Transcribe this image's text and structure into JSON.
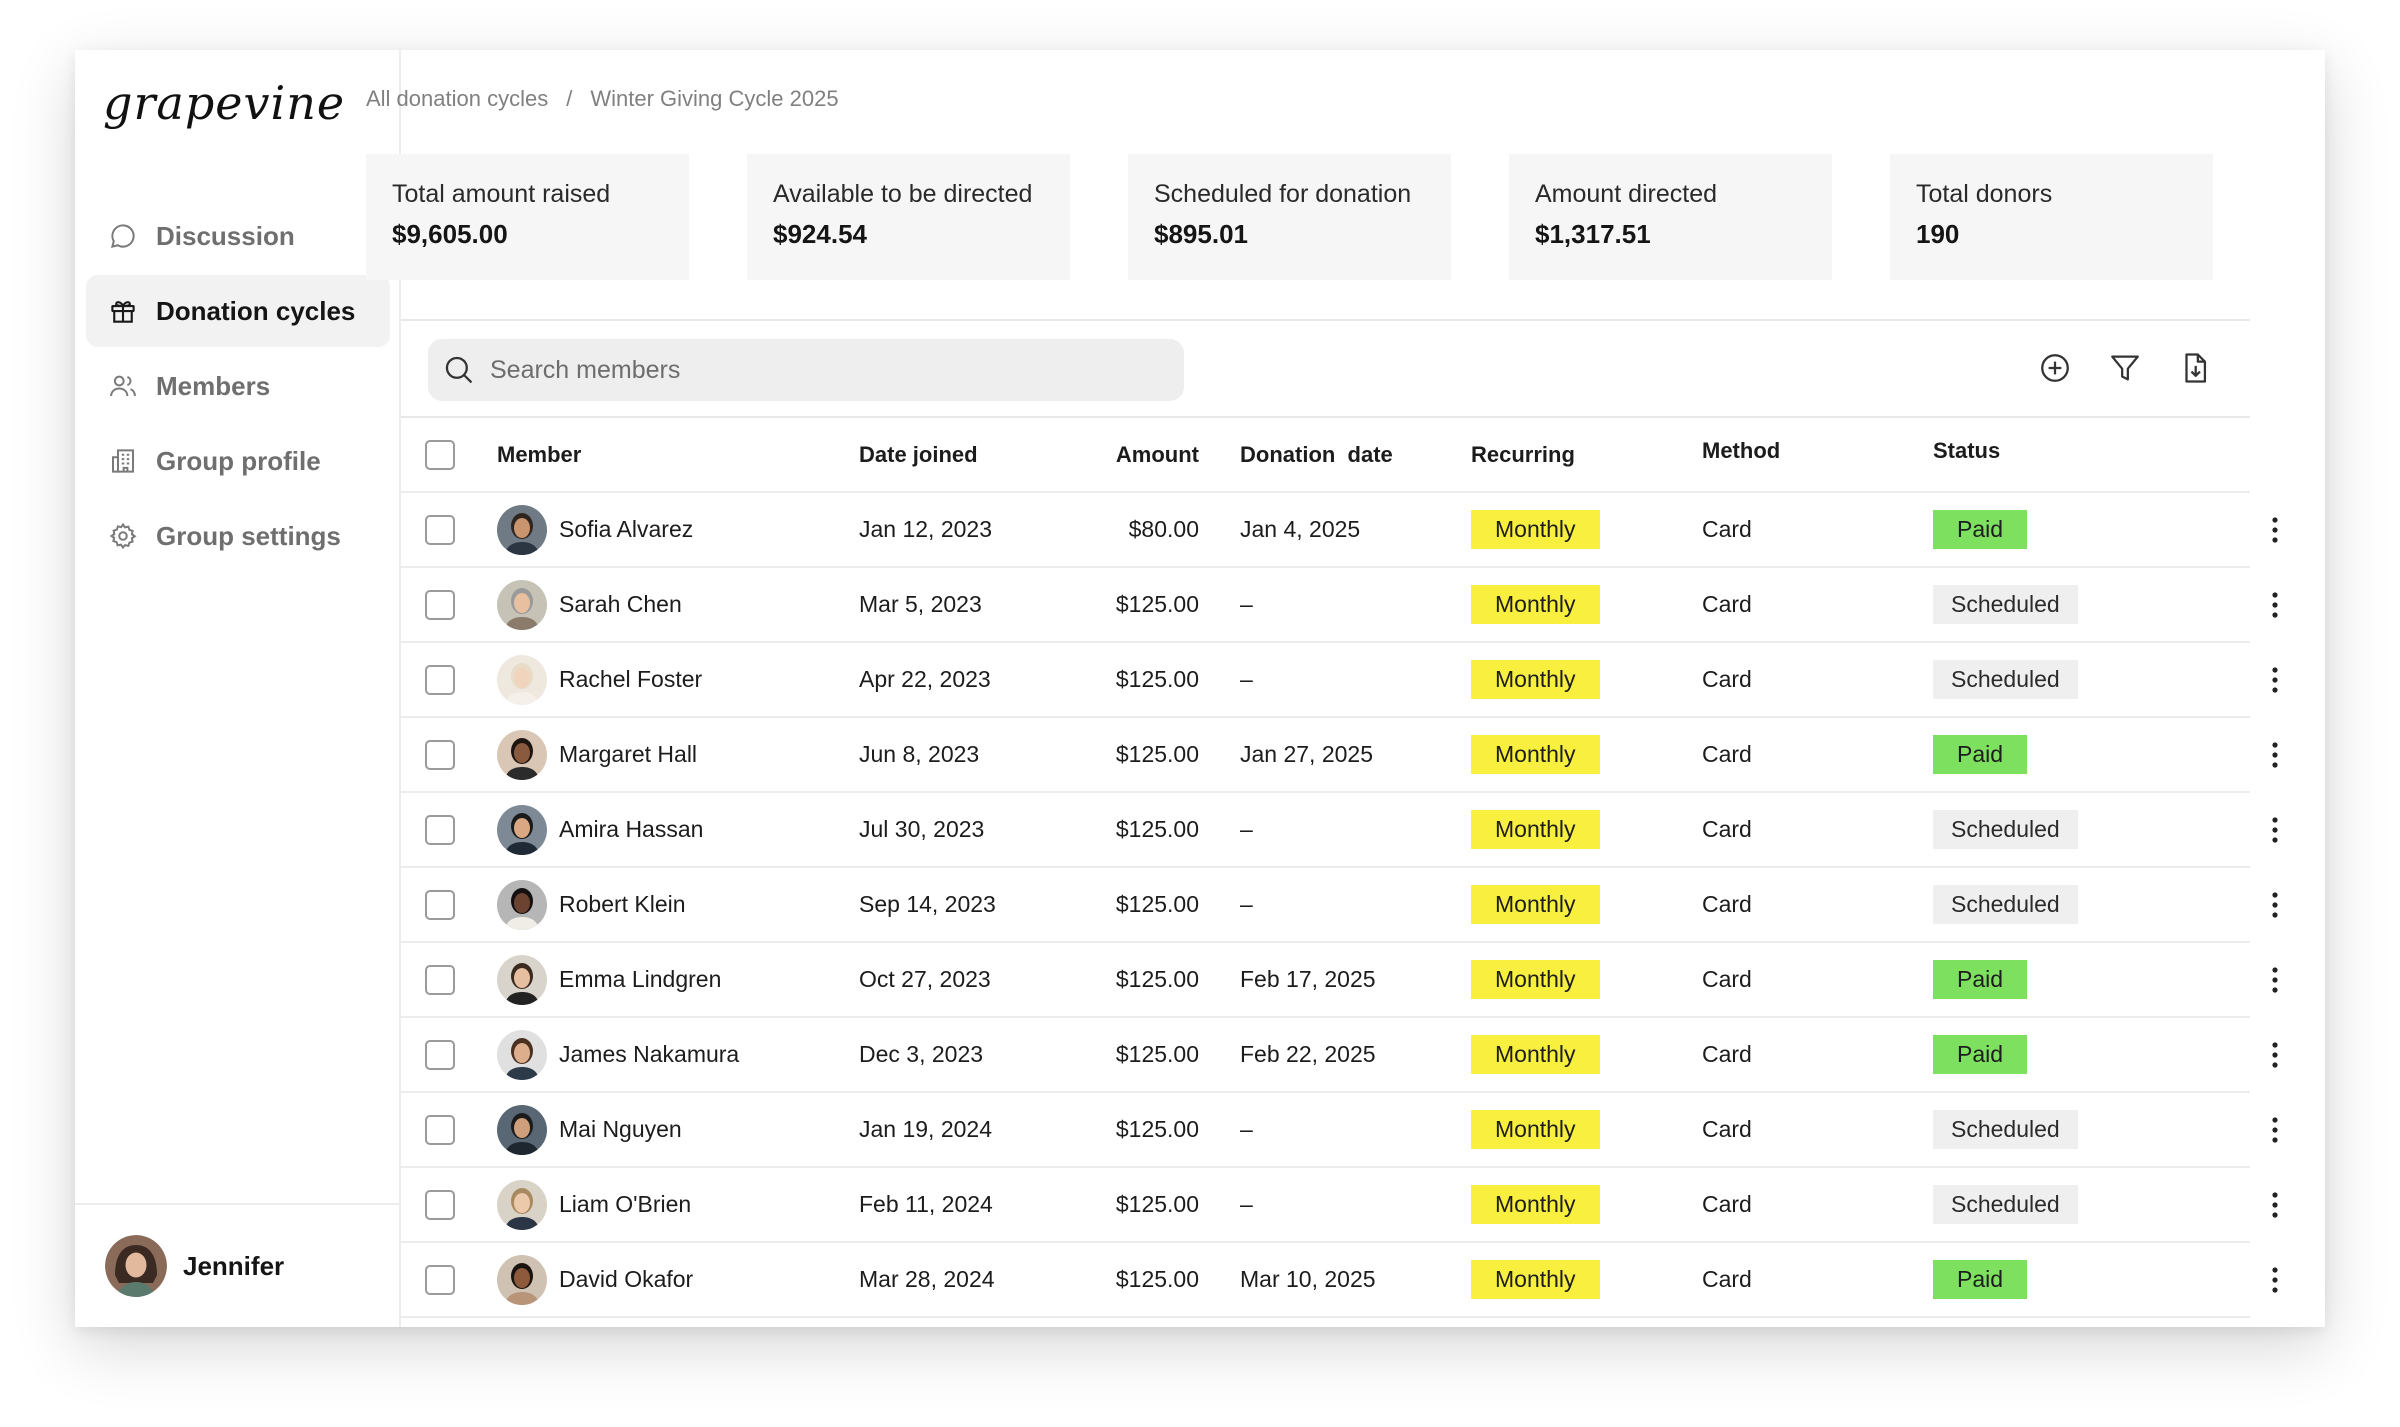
{
  "app": {
    "logo": "grapevine"
  },
  "sidebar": {
    "items": [
      {
        "label": "Discussion",
        "icon": "chat-bubble-icon",
        "active": false
      },
      {
        "label": "Donation cycles",
        "icon": "gift-icon",
        "active": true
      },
      {
        "label": "Members",
        "icon": "users-icon",
        "active": false
      },
      {
        "label": "Group profile",
        "icon": "building-icon",
        "active": false
      },
      {
        "label": "Group settings",
        "icon": "gear-icon",
        "active": false
      }
    ],
    "user": {
      "name": "Jennifer"
    }
  },
  "breadcrumb": {
    "parent": "All donation cycles",
    "separator": "/",
    "current": "Winter Giving Cycle 2025"
  },
  "stats": [
    {
      "label": "Total amount raised",
      "value": "$9,605.00"
    },
    {
      "label": "Available to be directed",
      "value": "$924.54"
    },
    {
      "label": "Scheduled for donation",
      "value": "$895.01"
    },
    {
      "label": "Amount directed",
      "value": "$1,317.51"
    },
    {
      "label": "Total donors",
      "value": "190"
    }
  ],
  "search": {
    "placeholder": "Search members"
  },
  "toolbar": {
    "icons": [
      "add-circle-icon",
      "filter-icon",
      "export-icon"
    ]
  },
  "table": {
    "columns": {
      "member": "Member",
      "date_joined": "Date joined",
      "amount": "Amount",
      "donation_date": "Donation  date",
      "recurring": "Recurring",
      "method": "Method",
      "status": "Status"
    },
    "rows": [
      {
        "name": "Sofia Alvarez",
        "joined": "Jan 12, 2023",
        "amount": "$80.00",
        "donation_date": "Jan 4, 2025",
        "recurring": "Monthly",
        "method": "Card",
        "status": "Paid"
      },
      {
        "name": "Sarah Chen",
        "joined": "Mar 5, 2023",
        "amount": "$125.00",
        "donation_date": "–",
        "recurring": "Monthly",
        "method": "Card",
        "status": "Scheduled"
      },
      {
        "name": "Rachel Foster",
        "joined": "Apr 22, 2023",
        "amount": "$125.00",
        "donation_date": "–",
        "recurring": "Monthly",
        "method": "Card",
        "status": "Scheduled"
      },
      {
        "name": "Margaret Hall",
        "joined": "Jun 8, 2023",
        "amount": "$125.00",
        "donation_date": "Jan 27, 2025",
        "recurring": "Monthly",
        "method": "Card",
        "status": "Paid"
      },
      {
        "name": "Amira Hassan",
        "joined": "Jul 30, 2023",
        "amount": "$125.00",
        "donation_date": "–",
        "recurring": "Monthly",
        "method": "Card",
        "status": "Scheduled"
      },
      {
        "name": "Robert Klein",
        "joined": "Sep 14, 2023",
        "amount": "$125.00",
        "donation_date": "–",
        "recurring": "Monthly",
        "method": "Card",
        "status": "Scheduled"
      },
      {
        "name": "Emma Lindgren",
        "joined": "Oct 27, 2023",
        "amount": "$125.00",
        "donation_date": "Feb 17, 2025",
        "recurring": "Monthly",
        "method": "Card",
        "status": "Paid"
      },
      {
        "name": "James Nakamura",
        "joined": "Dec 3, 2023",
        "amount": "$125.00",
        "donation_date": "Feb 22, 2025",
        "recurring": "Monthly",
        "method": "Card",
        "status": "Paid"
      },
      {
        "name": "Mai Nguyen",
        "joined": "Jan 19, 2024",
        "amount": "$125.00",
        "donation_date": "–",
        "recurring": "Monthly",
        "method": "Card",
        "status": "Scheduled"
      },
      {
        "name": "Liam O'Brien",
        "joined": "Feb 11, 2024",
        "amount": "$125.00",
        "donation_date": "–",
        "recurring": "Monthly",
        "method": "Card",
        "status": "Scheduled"
      },
      {
        "name": "David Okafor",
        "joined": "Mar 28, 2024",
        "amount": "$125.00",
        "donation_date": "Mar 10, 2025",
        "recurring": "Monthly",
        "method": "Card",
        "status": "Paid"
      }
    ]
  },
  "colors": {
    "monthly": "#f9ef3e",
    "paid": "#7de05f",
    "scheduled": "#efefef",
    "active_nav": "#f2f2f2"
  }
}
